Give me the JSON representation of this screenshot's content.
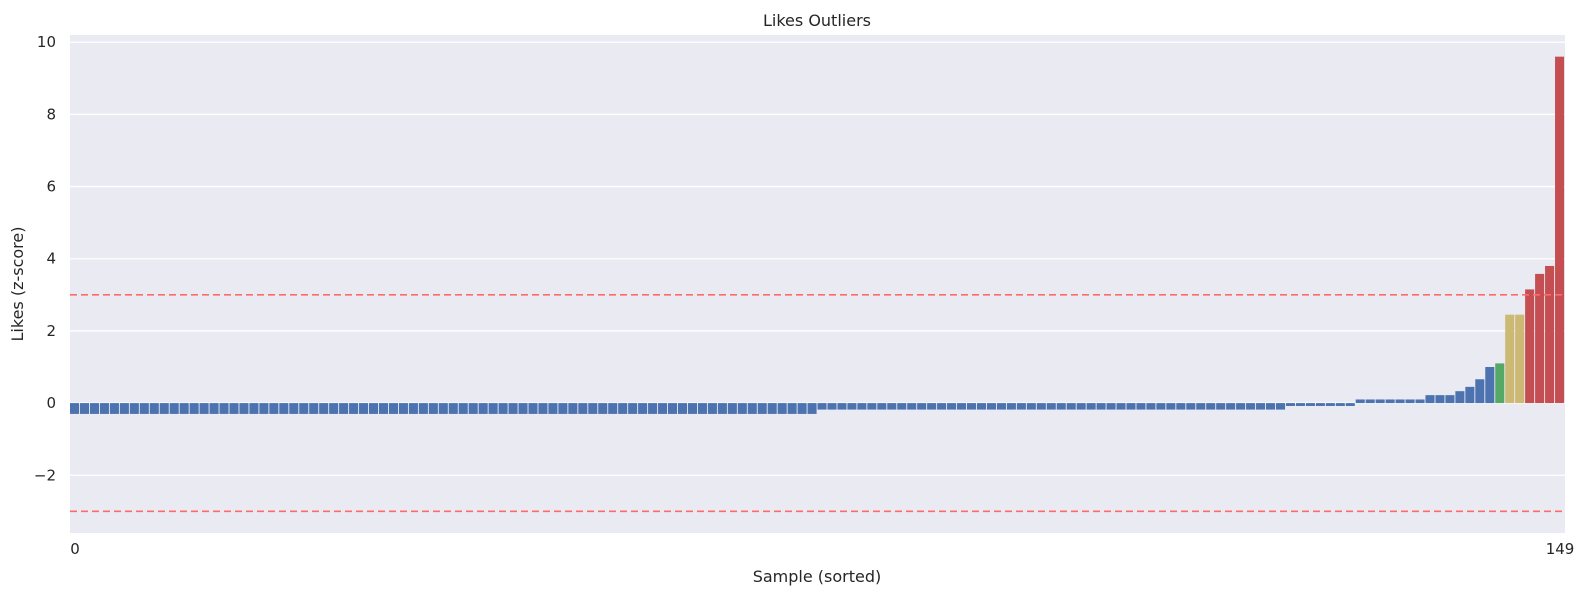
{
  "chart_data": {
    "type": "bar",
    "title": "Likes Outliers",
    "xlabel": "Sample (sorted)",
    "ylabel": "Likes (z-score)",
    "ylim": [
      -3.6,
      10.2
    ],
    "yticks": [
      -2,
      0,
      2,
      4,
      6,
      8,
      10
    ],
    "ytick_labels": [
      "−2",
      "0",
      "2",
      "4",
      "6",
      "8",
      "10"
    ],
    "xticks": [
      0,
      149
    ],
    "xtick_labels": [
      "0",
      "149"
    ],
    "grid": true,
    "thresholds": [
      3,
      -3
    ],
    "colors": {
      "background": "#EAEAF2",
      "grid": "#FFFFFF",
      "normal": "#4C72B0",
      "green": "#55A868",
      "tan": "#CCB974",
      "outlier": "#C44E52",
      "threshold_line": "#FF6B6B"
    },
    "bar_groups": [
      {
        "count": 75,
        "value": -0.3,
        "color": "normal"
      },
      {
        "count": 47,
        "value": -0.18,
        "color": "normal"
      },
      {
        "count": 7,
        "value": -0.08,
        "color": "normal"
      },
      {
        "count": 7,
        "value": 0.1,
        "color": "normal"
      },
      {
        "count": 3,
        "value": 0.22,
        "color": "normal"
      },
      {
        "count": 1,
        "value": 0.33,
        "color": "normal"
      },
      {
        "count": 1,
        "value": 0.45,
        "color": "normal"
      },
      {
        "count": 1,
        "value": 0.66,
        "color": "normal"
      },
      {
        "count": 1,
        "value": 1.0,
        "color": "normal"
      },
      {
        "count": 1,
        "value": 1.1,
        "color": "green"
      },
      {
        "count": 2,
        "value": 2.45,
        "color": "tan"
      },
      {
        "count": 1,
        "value": 3.15,
        "color": "outlier"
      },
      {
        "count": 1,
        "value": 3.58,
        "color": "outlier"
      },
      {
        "count": 1,
        "value": 3.8,
        "color": "outlier"
      },
      {
        "count": 1,
        "value": 9.6,
        "color": "outlier"
      }
    ]
  }
}
